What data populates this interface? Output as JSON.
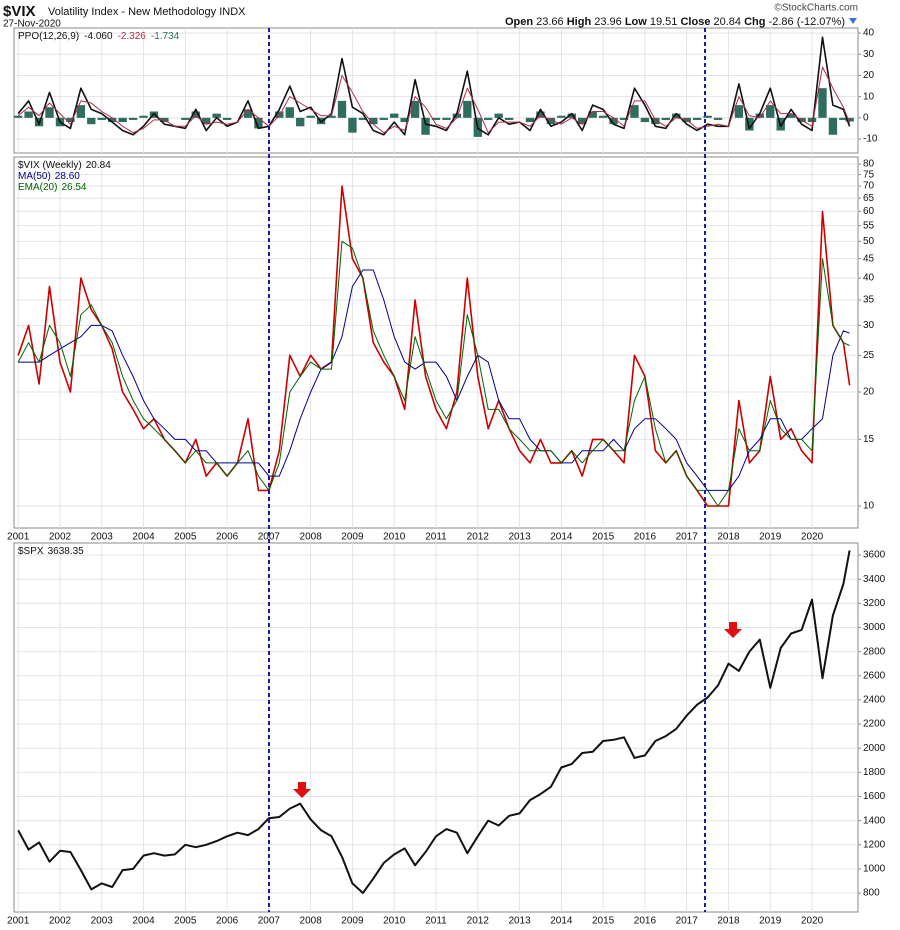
{
  "header": {
    "symbol": "$VIX",
    "description": "Volatility Index - New Methodology INDX",
    "date": "27-Nov-2020",
    "credit": "©StockCharts.com",
    "quote": [
      {
        "label": "Open",
        "value": 23.66
      },
      {
        "label": "High",
        "value": 23.96
      },
      {
        "label": "Low",
        "value": 19.51
      },
      {
        "label": "Close",
        "value": 20.84
      },
      {
        "label": "Chg",
        "value": "-2.86 (-12.07%)"
      }
    ]
  },
  "chart_data": [
    {
      "type": "line",
      "legend_title": "PPO(12,26,9)",
      "x": [
        2001,
        2001.25,
        2001.5,
        2001.75,
        2002,
        2002.25,
        2002.5,
        2002.75,
        2003,
        2003.25,
        2003.5,
        2003.75,
        2004,
        2004.25,
        2004.5,
        2004.75,
        2005,
        2005.25,
        2005.5,
        2005.75,
        2006,
        2006.25,
        2006.5,
        2006.75,
        2007,
        2007.25,
        2007.5,
        2007.75,
        2008,
        2008.25,
        2008.5,
        2008.75,
        2009,
        2009.25,
        2009.5,
        2009.75,
        2010,
        2010.25,
        2010.5,
        2010.75,
        2011,
        2011.25,
        2011.5,
        2011.75,
        2012,
        2012.25,
        2012.5,
        2012.75,
        2013,
        2013.25,
        2013.5,
        2013.75,
        2014,
        2014.25,
        2014.5,
        2014.75,
        2015,
        2015.25,
        2015.5,
        2015.75,
        2016,
        2016.25,
        2016.5,
        2016.75,
        2017,
        2017.25,
        2017.5,
        2017.75,
        2018,
        2018.25,
        2018.5,
        2018.75,
        2019,
        2019.25,
        2019.5,
        2019.75,
        2020,
        2020.25,
        2020.5,
        2020.75,
        2020.9
      ],
      "xlim": [
        2000.9,
        2021.1
      ],
      "xticks": [
        2001,
        2002,
        2003,
        2004,
        2005,
        2006,
        2007,
        2008,
        2009,
        2010,
        2011,
        2012,
        2013,
        2014,
        2015,
        2016,
        2017,
        2018,
        2019,
        2020
      ],
      "ylim": [
        -16.6,
        42.4
      ],
      "yticks": [
        -10,
        0,
        10,
        20,
        30,
        40
      ],
      "grid": true,
      "log": false,
      "series": [
        {
          "type": "bar",
          "color": "#2f6e5e",
          "legend_value": "-1.734",
          "values": [
            1,
            3,
            -4,
            5,
            -4,
            -2,
            6,
            -3,
            -1,
            -2,
            -2,
            -1,
            1,
            3,
            -2,
            0,
            -1,
            3,
            -3,
            2,
            -1,
            0,
            4,
            -5,
            0,
            3,
            5,
            -4,
            1,
            -3,
            1,
            8,
            -7,
            -1,
            -3,
            -1,
            2,
            -2,
            8,
            -8,
            -1,
            -1,
            2,
            8,
            -9,
            -1,
            2,
            -1,
            0,
            -2,
            3,
            -3,
            1,
            2,
            -3,
            3,
            1,
            -3,
            -1,
            6,
            -2,
            -3,
            -1,
            2,
            -2,
            -1,
            1,
            -1,
            0,
            6,
            -6,
            2,
            6,
            -6,
            2,
            -2,
            -2,
            14,
            -8,
            -1,
            -1.734
          ]
        },
        {
          "type": "line",
          "color": "#111111",
          "width": 1.6,
          "legend_value": "-4.060",
          "values": [
            2,
            8,
            -3,
            12,
            -2,
            -5,
            14,
            4,
            2,
            -2,
            -6,
            -8,
            -4,
            2,
            -3,
            -4,
            -5,
            4,
            -6,
            0,
            -4,
            -2,
            8,
            -5,
            -4,
            4,
            15,
            3,
            5,
            -2,
            2,
            28,
            5,
            2,
            -6,
            -8,
            -2,
            -8,
            18,
            -3,
            -4,
            -6,
            2,
            22,
            -5,
            -8,
            0,
            -3,
            -2,
            -6,
            4,
            -4,
            -2,
            2,
            -6,
            6,
            4,
            -3,
            -5,
            14,
            6,
            -4,
            -5,
            2,
            -3,
            -6,
            -3,
            -4,
            -4,
            16,
            -5,
            2,
            14,
            -4,
            4,
            -3,
            -6,
            38,
            6,
            4,
            -4.06
          ]
        },
        {
          "type": "line",
          "color": "#b03048",
          "width": 1,
          "legend_value": "-2.326",
          "values": [
            1,
            5,
            1,
            7,
            2,
            -3,
            8,
            7,
            3,
            0,
            -4,
            -7,
            -5,
            -1,
            -1,
            -4,
            -4,
            1,
            -3,
            -2,
            -3,
            -2,
            4,
            0,
            -4,
            1,
            10,
            7,
            4,
            1,
            1,
            20,
            12,
            3,
            -3,
            -7,
            -4,
            -6,
            10,
            5,
            -3,
            -5,
            0,
            14,
            4,
            -7,
            -2,
            -2,
            -2,
            -4,
            1,
            -1,
            -3,
            0,
            -3,
            3,
            3,
            0,
            -4,
            8,
            8,
            -1,
            -4,
            0,
            -1,
            -5,
            -4,
            -3,
            -4,
            10,
            1,
            0,
            8,
            2,
            2,
            -1,
            -4,
            24,
            14,
            5,
            -2.326
          ]
        }
      ]
    },
    {
      "type": "line",
      "x": [
        2001,
        2001.25,
        2001.5,
        2001.75,
        2002,
        2002.25,
        2002.5,
        2002.75,
        2003,
        2003.25,
        2003.5,
        2003.75,
        2004,
        2004.25,
        2004.5,
        2004.75,
        2005,
        2005.25,
        2005.5,
        2005.75,
        2006,
        2006.25,
        2006.5,
        2006.75,
        2007,
        2007.25,
        2007.5,
        2007.75,
        2008,
        2008.25,
        2008.5,
        2008.75,
        2009,
        2009.25,
        2009.5,
        2009.75,
        2010,
        2010.25,
        2010.5,
        2010.75,
        2011,
        2011.25,
        2011.5,
        2011.75,
        2012,
        2012.25,
        2012.5,
        2012.75,
        2013,
        2013.25,
        2013.5,
        2013.75,
        2014,
        2014.25,
        2014.5,
        2014.75,
        2015,
        2015.25,
        2015.5,
        2015.75,
        2016,
        2016.25,
        2016.5,
        2016.75,
        2017,
        2017.25,
        2017.5,
        2017.75,
        2018,
        2018.25,
        2018.5,
        2018.75,
        2019,
        2019.25,
        2019.5,
        2019.75,
        2020,
        2020.25,
        2020.5,
        2020.75,
        2020.9
      ],
      "xlim": [
        2000.9,
        2021.1
      ],
      "xticks": [
        2001,
        2002,
        2003,
        2004,
        2005,
        2006,
        2007,
        2008,
        2009,
        2010,
        2011,
        2012,
        2013,
        2014,
        2015,
        2016,
        2017,
        2018,
        2019,
        2020
      ],
      "ylim": [
        8.75,
        83.5
      ],
      "yticks": [
        10,
        15,
        20,
        25,
        30,
        35,
        40,
        45,
        50,
        55,
        60,
        65,
        70,
        75,
        80
      ],
      "grid": true,
      "log": true,
      "series": [
        {
          "type": "line",
          "name": "$VIX (Weekly)",
          "legend_value": "20.84",
          "legend_color": "#111111",
          "color": "#cc0000",
          "width": 1.6,
          "values": [
            25,
            30,
            21,
            38,
            24,
            20,
            40,
            33,
            30,
            26,
            20,
            18,
            16,
            17,
            15,
            14,
            13,
            15,
            12,
            13,
            12,
            13,
            17,
            11,
            11,
            14,
            25,
            22,
            25,
            23,
            24,
            70,
            45,
            40,
            27,
            24,
            22,
            18,
            35,
            22,
            18,
            16,
            20,
            40,
            22,
            16,
            19,
            16,
            14,
            13,
            15,
            13,
            13,
            14,
            12,
            15,
            15,
            14,
            13,
            25,
            22,
            14,
            13,
            14,
            12,
            11,
            10,
            10,
            10,
            19,
            13,
            14,
            22,
            15,
            16,
            14,
            13,
            60,
            30,
            27,
            20.84
          ]
        },
        {
          "type": "line",
          "name": "MA(50)",
          "legend_value": "28.60",
          "color": "#000088",
          "width": 1,
          "values": [
            24,
            24,
            24,
            25,
            26,
            27,
            28,
            30,
            30,
            29,
            25,
            22,
            19,
            17,
            16,
            15,
            15,
            14,
            14,
            13,
            13,
            13,
            13,
            13,
            12,
            12,
            14,
            17,
            20,
            23,
            24,
            28,
            38,
            42,
            42,
            35,
            28,
            24,
            23,
            24,
            24,
            22,
            19,
            22,
            25,
            24,
            19,
            17,
            17,
            15,
            14,
            14,
            13,
            13,
            14,
            14,
            14,
            15,
            14,
            16,
            17,
            17,
            16,
            15,
            13,
            12,
            11,
            11,
            11,
            12,
            14,
            15,
            17,
            17,
            15,
            15,
            16,
            17,
            25,
            29,
            28.6
          ]
        },
        {
          "type": "line",
          "name": "EMA(20)",
          "legend_value": "26.54",
          "color": "#006400",
          "width": 1,
          "values": [
            24,
            27,
            24,
            30,
            27,
            22,
            32,
            34,
            30,
            27,
            22,
            19,
            17,
            16,
            15,
            14,
            13,
            14,
            13,
            13,
            12,
            13,
            14,
            12,
            11,
            13,
            20,
            22,
            24,
            23,
            23,
            50,
            48,
            40,
            29,
            25,
            22,
            19,
            28,
            23,
            19,
            17,
            19,
            32,
            25,
            18,
            18,
            16,
            15,
            14,
            14,
            14,
            13,
            14,
            13,
            14,
            15,
            14,
            14,
            19,
            22,
            16,
            13,
            14,
            12,
            11,
            11,
            10,
            11,
            16,
            14,
            14,
            19,
            16,
            15,
            15,
            14,
            45,
            30,
            27,
            26.54
          ]
        }
      ]
    },
    {
      "type": "line",
      "x": [
        2001,
        2001.25,
        2001.5,
        2001.75,
        2002,
        2002.25,
        2002.5,
        2002.75,
        2003,
        2003.25,
        2003.5,
        2003.75,
        2004,
        2004.25,
        2004.5,
        2004.75,
        2005,
        2005.25,
        2005.5,
        2005.75,
        2006,
        2006.25,
        2006.5,
        2006.75,
        2007,
        2007.25,
        2007.5,
        2007.75,
        2008,
        2008.25,
        2008.5,
        2008.75,
        2009,
        2009.25,
        2009.5,
        2009.75,
        2010,
        2010.25,
        2010.5,
        2010.75,
        2011,
        2011.25,
        2011.5,
        2011.75,
        2012,
        2012.25,
        2012.5,
        2012.75,
        2013,
        2013.25,
        2013.5,
        2013.75,
        2014,
        2014.25,
        2014.5,
        2014.75,
        2015,
        2015.25,
        2015.5,
        2015.75,
        2016,
        2016.25,
        2016.5,
        2016.75,
        2017,
        2017.25,
        2017.5,
        2017.75,
        2018,
        2018.25,
        2018.5,
        2018.75,
        2019,
        2019.25,
        2019.5,
        2019.75,
        2020,
        2020.25,
        2020.5,
        2020.75,
        2020.9
      ],
      "xlim": [
        2000.9,
        2021.1
      ],
      "xticks": [
        2001,
        2002,
        2003,
        2004,
        2005,
        2006,
        2007,
        2008,
        2009,
        2010,
        2011,
        2012,
        2013,
        2014,
        2015,
        2016,
        2017,
        2018,
        2019,
        2020
      ],
      "ylim": [
        643,
        3700
      ],
      "yticks": [
        800,
        1000,
        1200,
        1400,
        1600,
        1800,
        2000,
        2200,
        2400,
        2600,
        2800,
        3000,
        3200,
        3400,
        3600
      ],
      "grid": true,
      "log": false,
      "series": [
        {
          "type": "line",
          "name": "$SPX",
          "legend_value": "3638.35",
          "color": "#111111",
          "width": 2,
          "values": [
            1320,
            1160,
            1220,
            1060,
            1150,
            1140,
            990,
            830,
            880,
            850,
            990,
            1000,
            1110,
            1130,
            1110,
            1120,
            1200,
            1180,
            1200,
            1230,
            1270,
            1300,
            1280,
            1330,
            1420,
            1430,
            1500,
            1540,
            1410,
            1320,
            1270,
            1100,
            880,
            800,
            920,
            1050,
            1120,
            1170,
            1030,
            1140,
            1270,
            1330,
            1300,
            1130,
            1270,
            1400,
            1360,
            1440,
            1460,
            1570,
            1620,
            1680,
            1840,
            1870,
            1960,
            1970,
            2060,
            2070,
            2090,
            1920,
            1940,
            2060,
            2100,
            2160,
            2270,
            2360,
            2420,
            2520,
            2700,
            2640,
            2800,
            2900,
            2500,
            2830,
            2950,
            2980,
            3230,
            2580,
            3100,
            3360,
            3638.35
          ]
        }
      ]
    }
  ]
}
